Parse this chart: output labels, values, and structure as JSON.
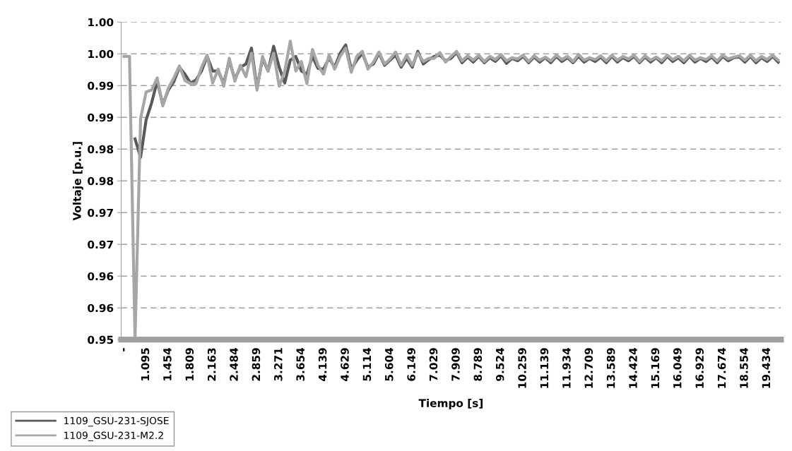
{
  "chart_data": {
    "type": "line",
    "xlabel": "Tiempo [s]",
    "ylabel": "Voltaje [p.u.]",
    "categories": [
      "-",
      null,
      null,
      null,
      "1.095",
      null,
      null,
      null,
      "1.454",
      null,
      null,
      null,
      "1.809",
      null,
      null,
      null,
      "2.163",
      null,
      null,
      null,
      "2.484",
      null,
      null,
      null,
      "2.859",
      null,
      null,
      null,
      "3.271",
      null,
      null,
      null,
      "3.654",
      null,
      null,
      null,
      "4.139",
      null,
      null,
      null,
      "4.629",
      null,
      null,
      null,
      "5.114",
      null,
      null,
      null,
      "5.604",
      null,
      null,
      null,
      "6.149",
      null,
      null,
      null,
      "7.029",
      null,
      null,
      null,
      "7.909",
      null,
      null,
      null,
      "8.789",
      null,
      null,
      null,
      "9.524",
      null,
      null,
      null,
      "10.259",
      null,
      null,
      null,
      "11.139",
      null,
      null,
      null,
      "11.934",
      null,
      null,
      null,
      "12.709",
      null,
      null,
      null,
      "13.589",
      null,
      null,
      null,
      "14.424",
      null,
      null,
      null,
      "15.169",
      null,
      null,
      null,
      "16.049",
      null,
      null,
      null,
      "16.929",
      null,
      null,
      null,
      "17.674",
      null,
      null,
      null,
      "18.554",
      null,
      null,
      null,
      "19.434",
      null,
      null
    ],
    "ylim": [
      0.95,
      1.0
    ],
    "yticks": [
      {
        "value": 0.95,
        "label": "0.95"
      },
      {
        "value": 0.955,
        "label": "0.96"
      },
      {
        "value": 0.96,
        "label": "0.96"
      },
      {
        "value": 0.965,
        "label": "0.97"
      },
      {
        "value": 0.97,
        "label": "0.97"
      },
      {
        "value": 0.975,
        "label": "0.98"
      },
      {
        "value": 0.98,
        "label": "0.98"
      },
      {
        "value": 0.985,
        "label": "0.99"
      },
      {
        "value": 0.99,
        "label": "0.99"
      },
      {
        "value": 0.995,
        "label": "1.00"
      },
      {
        "value": 1.0,
        "label": "1.00"
      }
    ],
    "grid": "y",
    "legend": "bottom left",
    "marker": "none",
    "line_style": "solid",
    "series": [
      {
        "name": "1109_GSU-231-SJOSE",
        "color": "#595959",
        "values": [
          null,
          null,
          0.9816,
          0.9787,
          0.9846,
          0.9873,
          0.9907,
          0.987,
          0.9893,
          0.9906,
          0.9929,
          0.9918,
          0.9904,
          0.9909,
          0.9923,
          0.9946,
          0.9923,
          0.9923,
          0.9903,
          0.994,
          0.991,
          0.9929,
          0.9934,
          0.9959,
          0.9896,
          0.9943,
          0.9923,
          0.9962,
          0.9929,
          0.9904,
          0.994,
          0.9946,
          0.9923,
          0.9918,
          0.9946,
          0.9927,
          0.9926,
          0.9943,
          0.9929,
          0.9951,
          0.9964,
          0.9926,
          0.994,
          0.9951,
          0.9929,
          0.9934,
          0.9951,
          0.9932,
          0.994,
          0.9948,
          0.9929,
          0.9943,
          0.9929,
          0.9954,
          0.9934,
          0.9941,
          0.9946,
          0.9948,
          0.9939,
          0.9943,
          0.9952,
          0.9936,
          0.9945,
          0.9937,
          0.9946,
          0.9936,
          0.9944,
          0.9938,
          0.9947,
          0.9935,
          0.9943,
          0.9939,
          0.9946,
          0.9936,
          0.9945,
          0.9937,
          0.9944,
          0.9936,
          0.9946,
          0.9938,
          0.9944,
          0.9936,
          0.9946,
          0.9937,
          0.9943,
          0.9938,
          0.9945,
          0.9936,
          0.9946,
          0.9937,
          0.9944,
          0.9939,
          0.9946,
          0.9936,
          0.9945,
          0.9937,
          0.9944,
          0.9936,
          0.9946,
          0.9938,
          0.9944,
          0.9936,
          0.9946,
          0.9937,
          0.9943,
          0.9938,
          0.9945,
          0.9936,
          0.9946,
          0.9939,
          0.9944,
          0.9945,
          0.9937,
          0.9946,
          0.9936,
          0.9944,
          0.9938,
          0.9946,
          0.9937
        ]
      },
      {
        "name": "1109_GSU-231-M2.2",
        "color": "#a6a6a6",
        "values": [
          0.9946,
          0.9946,
          0.95,
          0.9848,
          0.989,
          0.9893,
          0.9912,
          0.9868,
          0.9896,
          0.9912,
          0.9931,
          0.9908,
          0.9903,
          0.9903,
          0.9929,
          0.9948,
          0.9904,
          0.9926,
          0.9899,
          0.9943,
          0.9907,
          0.9932,
          0.9914,
          0.9951,
          0.9893,
          0.9946,
          0.9923,
          0.9951,
          0.9899,
          0.9923,
          0.997,
          0.9923,
          0.9938,
          0.9903,
          0.9957,
          0.9932,
          0.9918,
          0.9948,
          0.9926,
          0.9946,
          0.9959,
          0.9921,
          0.9946,
          0.9954,
          0.9926,
          0.9937,
          0.9953,
          0.9934,
          0.9942,
          0.9953,
          0.9932,
          0.9948,
          0.9932,
          0.9951,
          0.9938,
          0.9943,
          0.9943,
          0.9952,
          0.9937,
          0.9946,
          0.9954,
          0.9939,
          0.9947,
          0.994,
          0.9948,
          0.9938,
          0.9946,
          0.9941,
          0.9949,
          0.9939,
          0.9944,
          0.9942,
          0.9948,
          0.9938,
          0.9947,
          0.994,
          0.9945,
          0.9939,
          0.9948,
          0.9941,
          0.9946,
          0.9938,
          0.9949,
          0.994,
          0.9944,
          0.9941,
          0.9947,
          0.9939,
          0.9948,
          0.994,
          0.9946,
          0.9942,
          0.9948,
          0.9938,
          0.9947,
          0.994,
          0.9945,
          0.9939,
          0.9948,
          0.9941,
          0.9946,
          0.9939,
          0.9948,
          0.994,
          0.9944,
          0.9941,
          0.9947,
          0.9939,
          0.9948,
          0.9942,
          0.9945,
          0.9947,
          0.994,
          0.9948,
          0.9939,
          0.9946,
          0.9941,
          0.9948,
          0.994
        ]
      }
    ]
  }
}
